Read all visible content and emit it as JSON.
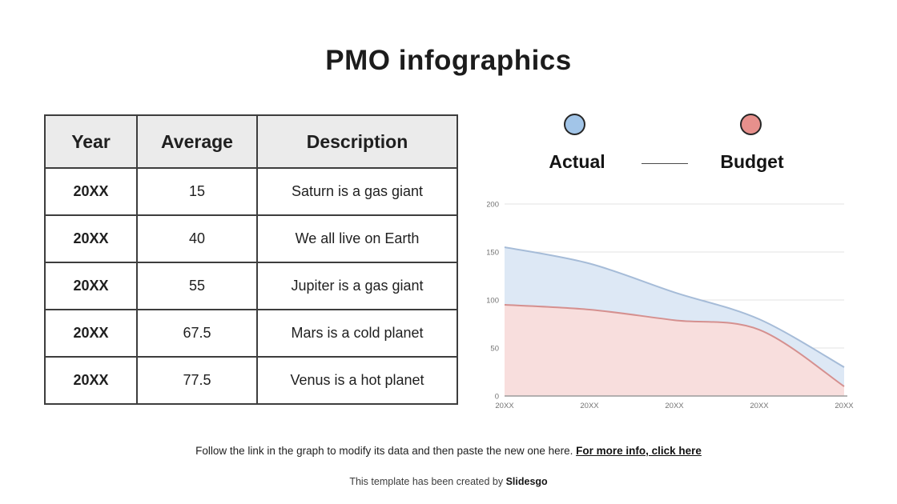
{
  "title": "PMO infographics",
  "table": {
    "headers": [
      "Year",
      "Average",
      "Description"
    ],
    "rows": [
      {
        "year": "20XX",
        "average": "15",
        "description": "Saturn is a gas giant"
      },
      {
        "year": "20XX",
        "average": "40",
        "description": "We all live on Earth"
      },
      {
        "year": "20XX",
        "average": "55",
        "description": "Jupiter is a gas giant"
      },
      {
        "year": "20XX",
        "average": "67.5",
        "description": "Mars is a cold planet"
      },
      {
        "year": "20XX",
        "average": "77.5",
        "description": "Venus is a hot planet"
      }
    ]
  },
  "legend": {
    "actual_label": "Actual",
    "budget_label": "Budget",
    "actual_color": "#a2c5e8",
    "budget_color": "#e7908c",
    "swatch_outline": "#262626"
  },
  "chart_data": {
    "type": "area",
    "title": "",
    "xlabel": "",
    "ylabel": "",
    "categories": [
      "20XX",
      "20XX",
      "20XX",
      "20XX",
      "20XX"
    ],
    "series": [
      {
        "name": "Actual",
        "values": [
          155,
          138,
          108,
          80,
          30
        ],
        "line_color": "#a6bcd8",
        "fill_color": "#dde8f5"
      },
      {
        "name": "Budget",
        "values": [
          95,
          90,
          79,
          69,
          10
        ],
        "line_color": "#d5908f",
        "fill_color": "#f8dedd"
      }
    ],
    "ylim": [
      0,
      200
    ],
    "yticks": [
      0,
      50,
      100,
      150,
      200
    ],
    "grid": true,
    "grid_color": "#e3e3e3",
    "axis_line_color": "#9b9b9b",
    "tick_label_color": "#737373",
    "legend_position": "top"
  },
  "footer": {
    "instruction": "Follow the link in the graph to modify its data and then paste the new one here. ",
    "link_text": "For more info, click here",
    "credit_prefix": "This template has been created by ",
    "credit_brand": "Slidesgo"
  }
}
